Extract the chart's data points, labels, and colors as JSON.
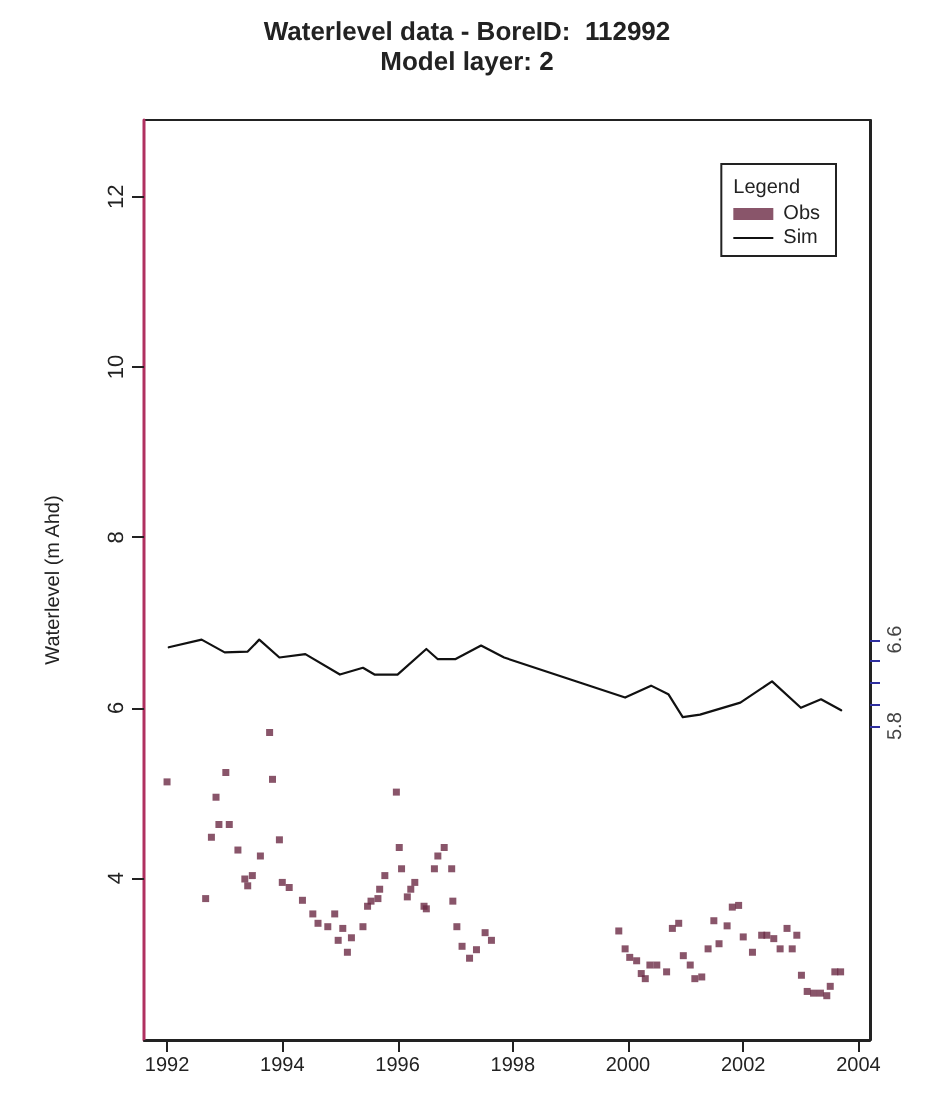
{
  "chart_data": {
    "type": "scatter",
    "title": "Waterlevel data - BoreID:  112992",
    "subtitle": "Model layer: 2",
    "ylabel": "Waterlevel (m Ahd)",
    "legend_title": "Legend",
    "legend": "top right",
    "xlim": [
      1991.6,
      2004.2
    ],
    "xticks": [
      1992,
      1994,
      1996,
      1998,
      2000,
      2002,
      2004
    ],
    "ylim": [
      2.1,
      12.9
    ],
    "yticks": [
      4,
      6,
      8,
      10,
      12
    ],
    "y2lim": [
      2.9,
      11.4
    ],
    "y2ticks": [
      5.8,
      {
        "value": 6.0,
        "label": null
      },
      {
        "value": 6.2,
        "label": null
      },
      {
        "value": 6.4,
        "label": null
      },
      6.6
    ],
    "grid": false,
    "series": [
      {
        "name": "Obs",
        "marker": "square",
        "color": "#6b2a45",
        "x": [
          1992.0,
          1992.67,
          1992.77,
          1992.85,
          1992.9,
          1993.02,
          1993.08,
          1993.23,
          1993.35,
          1993.4,
          1993.48,
          1993.62,
          1993.78,
          1993.83,
          1993.95,
          1994.0,
          1994.12,
          1994.35,
          1994.53,
          1994.62,
          1994.79,
          1994.91,
          1994.97,
          1995.05,
          1995.13,
          1995.2,
          1995.4,
          1995.48,
          1995.54,
          1995.66,
          1995.69,
          1995.78,
          1995.98,
          1996.03,
          1996.07,
          1996.17,
          1996.23,
          1996.3,
          1996.46,
          1996.5,
          1996.64,
          1996.7,
          1996.81,
          1996.94,
          1996.96,
          1997.03,
          1997.12,
          1997.25,
          1997.37,
          1997.52,
          1997.63,
          1999.84,
          1999.95,
          2000.03,
          2000.15,
          2000.23,
          2000.3,
          2000.38,
          2000.5,
          2000.67,
          2000.77,
          2000.88,
          2000.96,
          2001.08,
          2001.16,
          2001.28,
          2001.39,
          2001.49,
          2001.58,
          2001.72,
          2001.81,
          2001.92,
          2002.0,
          2002.16,
          2002.32,
          2002.41,
          2002.53,
          2002.64,
          2002.76,
          2002.85,
          2002.93,
          2003.01,
          2003.11,
          2003.22,
          2003.34,
          2003.45,
          2003.51,
          2003.59,
          2003.69
        ],
        "values": [
          5.13,
          3.76,
          4.48,
          4.95,
          4.63,
          5.24,
          4.63,
          4.33,
          3.99,
          3.91,
          4.03,
          4.26,
          5.71,
          5.16,
          4.45,
          3.95,
          3.89,
          3.74,
          3.58,
          3.47,
          3.43,
          3.58,
          3.27,
          3.41,
          3.13,
          3.3,
          3.43,
          3.67,
          3.73,
          3.76,
          3.87,
          4.03,
          5.01,
          4.36,
          4.11,
          3.78,
          3.87,
          3.95,
          3.67,
          3.64,
          4.11,
          4.26,
          4.36,
          4.11,
          3.73,
          3.43,
          3.2,
          3.06,
          3.16,
          3.36,
          3.27,
          3.38,
          3.17,
          3.07,
          3.03,
          2.88,
          2.82,
          2.98,
          2.98,
          2.9,
          3.41,
          3.47,
          3.09,
          2.98,
          2.82,
          2.84,
          3.17,
          3.5,
          3.23,
          3.44,
          3.66,
          3.68,
          3.31,
          3.13,
          3.33,
          3.33,
          3.29,
          3.17,
          3.41,
          3.17,
          3.33,
          2.86,
          2.67,
          2.65,
          2.65,
          2.62,
          2.73,
          2.9,
          2.9
        ]
      },
      {
        "name": "Sim",
        "type": "line",
        "marker": "none",
        "line_style": "solid",
        "color": "#111111",
        "x": [
          1992.03,
          1992.6,
          1993.0,
          1993.4,
          1993.6,
          1993.95,
          1994.4,
          1995.0,
          1995.4,
          1995.6,
          1996.0,
          1996.5,
          1996.7,
          1997.0,
          1997.45,
          1997.85,
          1999.95,
          2000.4,
          2000.7,
          2000.95,
          2001.25,
          2001.95,
          2002.5,
          2003.0,
          2003.35,
          2003.7
        ],
        "values": [
          6.71,
          6.8,
          6.65,
          6.66,
          6.8,
          6.59,
          6.63,
          6.39,
          6.47,
          6.39,
          6.39,
          6.69,
          6.57,
          6.57,
          6.73,
          6.59,
          6.12,
          6.26,
          6.16,
          5.89,
          5.92,
          6.06,
          6.31,
          6.0,
          6.1,
          5.97
        ]
      }
    ]
  }
}
